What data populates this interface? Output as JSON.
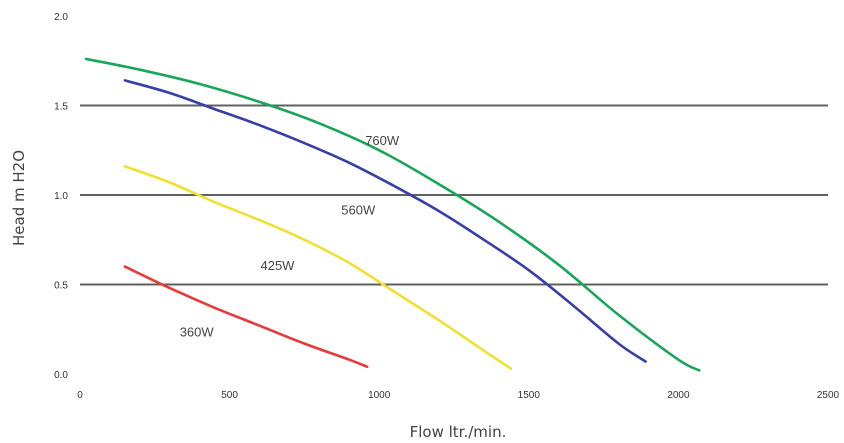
{
  "chart_data": {
    "type": "line",
    "xlabel": "Flow ltr./min.",
    "ylabel": "Head m H2O",
    "xlim": [
      0,
      2500
    ],
    "ylim": [
      0,
      2.0
    ],
    "x_ticks": [
      "0",
      "500",
      "1000",
      "1500",
      "2000",
      "2500"
    ],
    "y_ticks": [
      "0.0",
      "0.5",
      "1.0",
      "1.5",
      "2.0"
    ],
    "grid": "horizontal lines at 0.5, 1.0, 1.5",
    "series": [
      {
        "name": "360W",
        "color": "#e83a3a",
        "x": [
          150,
          300,
          450,
          600,
          750,
          900,
          960
        ],
        "y": [
          0.6,
          0.48,
          0.37,
          0.27,
          0.17,
          0.08,
          0.04
        ]
      },
      {
        "name": "425W",
        "color": "#f0e030",
        "x": [
          150,
          300,
          450,
          600,
          750,
          900,
          1050,
          1200,
          1350,
          1440
        ],
        "y": [
          1.16,
          1.07,
          0.96,
          0.86,
          0.75,
          0.62,
          0.46,
          0.3,
          0.13,
          0.03
        ]
      },
      {
        "name": "560W",
        "color": "#3a3ea8",
        "x": [
          150,
          300,
          450,
          600,
          750,
          900,
          1050,
          1200,
          1350,
          1500,
          1650,
          1800,
          1890
        ],
        "y": [
          1.64,
          1.57,
          1.48,
          1.39,
          1.29,
          1.18,
          1.05,
          0.91,
          0.75,
          0.58,
          0.38,
          0.17,
          0.07
        ]
      },
      {
        "name": "760W",
        "color": "#1aa65a",
        "x": [
          20,
          200,
          400,
          600,
          800,
          1000,
          1200,
          1400,
          1600,
          1800,
          2000,
          2070
        ],
        "y": [
          1.76,
          1.7,
          1.62,
          1.52,
          1.4,
          1.25,
          1.06,
          0.85,
          0.61,
          0.33,
          0.08,
          0.02
        ]
      }
    ],
    "labels": [
      {
        "text": "760W",
        "x": 1010,
        "y": 1.28
      },
      {
        "text": "560W",
        "x": 930,
        "y": 0.89
      },
      {
        "text": "425W",
        "x": 660,
        "y": 0.58
      },
      {
        "text": "360W",
        "x": 390,
        "y": 0.21
      }
    ]
  }
}
